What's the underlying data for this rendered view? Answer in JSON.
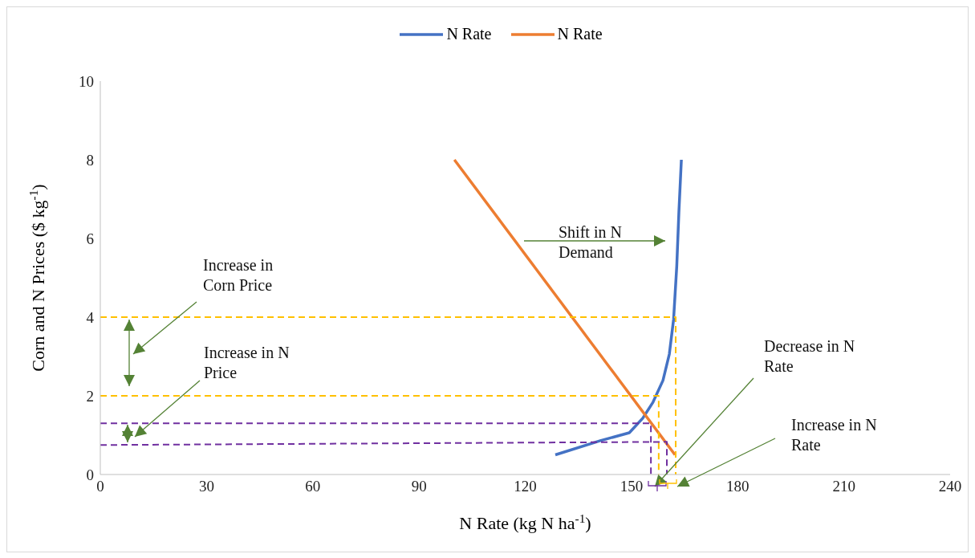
{
  "chart_data": {
    "type": "line",
    "xlabel": "N Rate (kg N ha$^{-1}$)",
    "ylabel": "Corn and N Prices ($ kg$^{-1}$)",
    "xlim": [
      0,
      240
    ],
    "xticks": [
      0,
      30,
      60,
      90,
      120,
      150,
      180,
      210,
      240
    ],
    "ylim": [
      0,
      10
    ],
    "yticks": [
      0,
      2,
      4,
      6,
      8,
      10
    ],
    "grid": false,
    "legend": "top",
    "marker": "none",
    "series": [
      {
        "name": "N Rate",
        "color": "#4472c4",
        "x": [
          128.5,
          141.2,
          149.4,
          153.2,
          156.1,
          158.9,
          160.7,
          161.9,
          162.8,
          163.4,
          164.1
        ],
        "values": [
          0.5,
          0.86,
          1.06,
          1.43,
          1.84,
          2.39,
          3.06,
          3.94,
          5.3,
          6.67,
          8
        ]
      },
      {
        "name": "N Rate",
        "color": "#ed7d31",
        "x": [
          100,
          162.3
        ],
        "values": [
          8,
          0.5
        ]
      },
      {
        "color": "#ffc000",
        "line_style": "dashed",
        "x": [
          0,
          162.5,
          162.5
        ],
        "values": [
          4,
          4,
          0
        ]
      },
      {
        "color": "#ffc000",
        "line_style": "dashed",
        "x": [
          0,
          157.7,
          157.7
        ],
        "values": [
          2,
          2,
          0
        ]
      },
      {
        "color": "#7030a0",
        "line_style": "dashed",
        "x": [
          0,
          155.5,
          155.5
        ],
        "values": [
          1.3,
          1.3,
          0
        ]
      },
      {
        "color": "#7030a0",
        "line_style": "dashed",
        "x": [
          0,
          160,
          160
        ],
        "values": [
          0.75,
          0.83,
          0
        ]
      }
    ],
    "annotations": [
      "Shift in N Demand",
      "Increase in Corn Price",
      "Increase in N Price",
      "Decrease in N Rate",
      "Increase in N Rate"
    ]
  }
}
